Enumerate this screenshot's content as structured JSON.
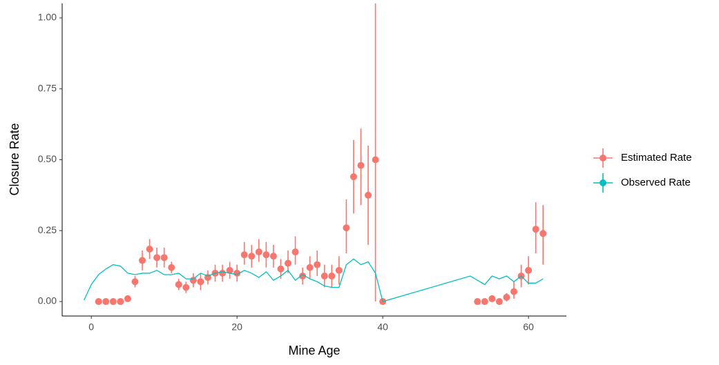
{
  "chart_data": {
    "type": "scatter",
    "x_label": "Mine Age",
    "y_label": "Closure Rate",
    "xlim": [
      -4,
      65.2
    ],
    "ylim": [
      -0.051,
      1.051
    ],
    "xticks": [
      0,
      20,
      40,
      60
    ],
    "yticks": [
      {
        "value": 0,
        "label": "0.00"
      },
      {
        "value": 0.25,
        "label": "0.25"
      },
      {
        "value": 0.5,
        "label": "0.50"
      },
      {
        "value": 0.75,
        "label": "0.75"
      },
      {
        "value": 1,
        "label": "1.00"
      }
    ],
    "series": [
      {
        "name": "Estimated Rate",
        "color": "#f8766d",
        "type": "errorbar",
        "x": [
          1,
          2,
          3,
          4,
          5,
          6,
          7,
          8,
          9,
          10,
          11,
          12,
          13,
          14,
          15,
          16,
          17,
          18,
          19,
          20,
          21,
          22,
          23,
          24,
          25,
          26,
          27,
          28,
          29,
          30,
          31,
          32,
          33,
          34,
          35,
          36,
          37,
          38,
          39,
          40,
          53,
          54,
          55,
          56,
          57,
          58,
          59,
          60,
          61,
          62
        ],
        "values": [
          0,
          0,
          0,
          0,
          0.01,
          0.07,
          0.145,
          0.185,
          0.155,
          0.155,
          0.12,
          0.06,
          0.05,
          0.075,
          0.07,
          0.085,
          0.1,
          0.1,
          0.11,
          0.1,
          0.165,
          0.16,
          0.175,
          0.165,
          0.16,
          0.115,
          0.135,
          0.175,
          0.09,
          0.12,
          0.13,
          0.09,
          0.09,
          0.11,
          0.26,
          0.44,
          0.48,
          0.375,
          0.5,
          0,
          0,
          0,
          0.01,
          0,
          0.015,
          0.035,
          0.09,
          0.11,
          0.255,
          0.24
        ],
        "lower": [
          0,
          0,
          0,
          0,
          0,
          0.05,
          0.11,
          0.15,
          0.12,
          0.12,
          0.1,
          0.04,
          0.03,
          0.05,
          0.04,
          0.06,
          0.07,
          0.07,
          0.08,
          0.07,
          0.13,
          0.12,
          0.14,
          0.12,
          0.12,
          0.08,
          0.1,
          0.13,
          0.06,
          0.08,
          0.09,
          0.05,
          0.05,
          0.06,
          0.17,
          0.31,
          0.34,
          0.2,
          0,
          0,
          0,
          0,
          0,
          0,
          0,
          0.01,
          0.05,
          0.06,
          0.17,
          0.13
        ],
        "upper": [
          0.005,
          0.005,
          0.005,
          0.005,
          0.02,
          0.09,
          0.18,
          0.22,
          0.19,
          0.19,
          0.14,
          0.08,
          0.07,
          0.1,
          0.1,
          0.11,
          0.13,
          0.13,
          0.14,
          0.13,
          0.21,
          0.2,
          0.22,
          0.21,
          0.2,
          0.15,
          0.18,
          0.23,
          0.12,
          0.16,
          0.18,
          0.13,
          0.13,
          0.16,
          0.36,
          0.57,
          0.61,
          0.55,
          1.1,
          0.005,
          0.005,
          0.005,
          0.02,
          0.005,
          0.03,
          0.07,
          0.13,
          0.16,
          0.35,
          0.34
        ]
      },
      {
        "name": "Observed Rate",
        "color": "#00bfc4",
        "type": "line",
        "x": [
          -1,
          0,
          1,
          2,
          3,
          4,
          5,
          6,
          7,
          8,
          9,
          10,
          11,
          12,
          13,
          14,
          15,
          16,
          17,
          18,
          19,
          20,
          21,
          22,
          23,
          24,
          25,
          26,
          27,
          28,
          29,
          30,
          31,
          32,
          33,
          34,
          35,
          36,
          37,
          38,
          39,
          40,
          52,
          53,
          54,
          55,
          56,
          57,
          58,
          59,
          60,
          61,
          62
        ],
        "values": [
          0.005,
          0.06,
          0.095,
          0.115,
          0.13,
          0.125,
          0.1,
          0.095,
          0.1,
          0.1,
          0.11,
          0.095,
          0.095,
          0.1,
          0.08,
          0.08,
          0.1,
          0.09,
          0.1,
          0.105,
          0.1,
          0.095,
          0.11,
          0.1,
          0.085,
          0.105,
          0.075,
          0.09,
          0.11,
          0.075,
          0.095,
          0.08,
          0.07,
          0.055,
          0.05,
          0.05,
          0.13,
          0.15,
          0.13,
          0.14,
          0.1,
          0,
          0.09,
          0.075,
          0.06,
          0.09,
          0.08,
          0.09,
          0.07,
          0.09,
          0.065,
          0.065,
          0.08
        ]
      }
    ]
  }
}
